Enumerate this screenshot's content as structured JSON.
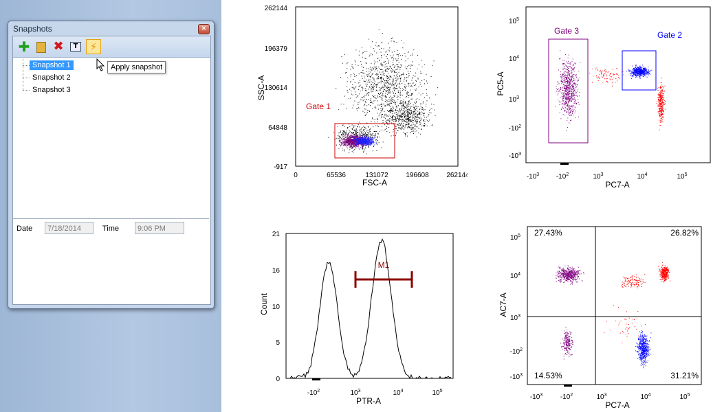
{
  "window": {
    "title": "Snapshots",
    "close": "×"
  },
  "toolbar": {
    "icons": [
      "add-icon",
      "folder-icon",
      "delete-icon",
      "rename-icon",
      "apply-snapshot-icon"
    ]
  },
  "tree": {
    "items": [
      "Snapshot 1",
      "Snapshot 2",
      "Snapshot 3"
    ],
    "selected": 0
  },
  "tooltip": "Apply snapshot",
  "details": {
    "date_label": "Date",
    "date_value": "7/18/2014",
    "time_label": "Time",
    "time_value": "9:06 PM"
  },
  "plots": {
    "scatter1": {
      "xlabel": "FSC-A",
      "ylabel": "SSC-A",
      "xticks": [
        "0",
        "65536",
        "131072",
        "196608",
        "262144"
      ],
      "yticks": [
        "262144",
        "196379",
        "130614",
        "64848",
        "-917"
      ],
      "gate": "Gate 1"
    },
    "scatter2": {
      "xlabel": "PC7-A",
      "ylabel": "PC5-A",
      "gate3": "Gate 3",
      "gate2": "Gate 2"
    },
    "hist": {
      "xlabel": "PTR-A",
      "ylabel": "Count",
      "yticks": [
        "21",
        "16",
        "10",
        "5",
        "0"
      ],
      "marker": "M1"
    },
    "quad": {
      "xlabel": "PC7-A",
      "ylabel": "AC7-A",
      "q_ul": "27.43%",
      "q_ur": "26.82%",
      "q_ll": "14.53%",
      "q_lr": "31.21%"
    }
  },
  "colors": {
    "gate1": "#cc0000",
    "gate2": "#0000ff",
    "gate3": "#800080",
    "marker": "#8b0000"
  }
}
